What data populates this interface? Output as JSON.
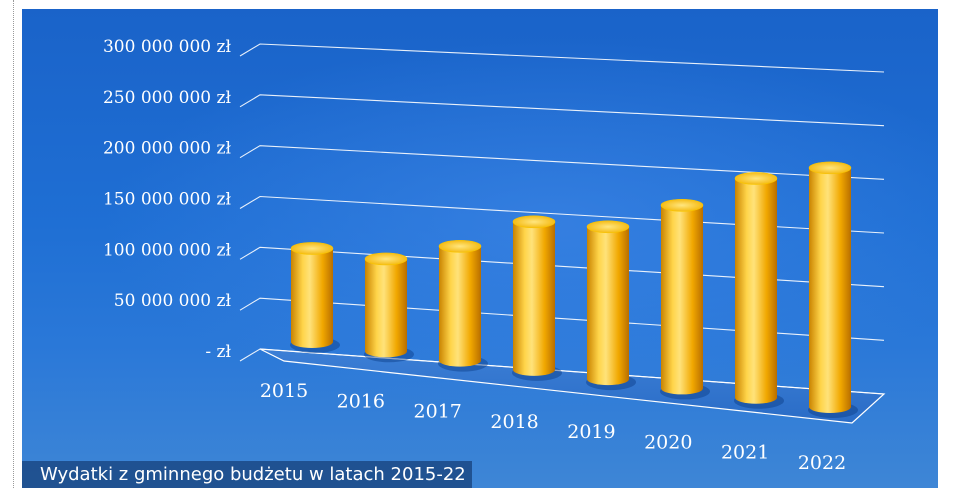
{
  "caption": "Wydatki z gminnego budżetu w latach 2015-22",
  "colors": {
    "background": "#1f6fd4",
    "bar": "#f5b400",
    "bar_light": "#ffe070",
    "bar_dark": "#c07800",
    "gridline": "#ffffff"
  },
  "chart_data": {
    "type": "bar",
    "style": "3d-cylinder",
    "categories": [
      "2015",
      "2016",
      "2017",
      "2018",
      "2019",
      "2020",
      "2021",
      "2022"
    ],
    "values": [
      115000000,
      110000000,
      132000000,
      166000000,
      166000000,
      194000000,
      226000000,
      240000000
    ],
    "y_tick_labels": [
      "- zł",
      "50 000 000 zł",
      "100 000 000 zł",
      "150 000 000 zł",
      "200 000 000 zł",
      "250 000 000 zł",
      "300 000 000 zł"
    ],
    "y_ticks": [
      0,
      50000000,
      100000000,
      150000000,
      200000000,
      250000000,
      300000000
    ],
    "ylim": [
      0,
      300000000
    ],
    "grid": true,
    "legend": "none"
  }
}
